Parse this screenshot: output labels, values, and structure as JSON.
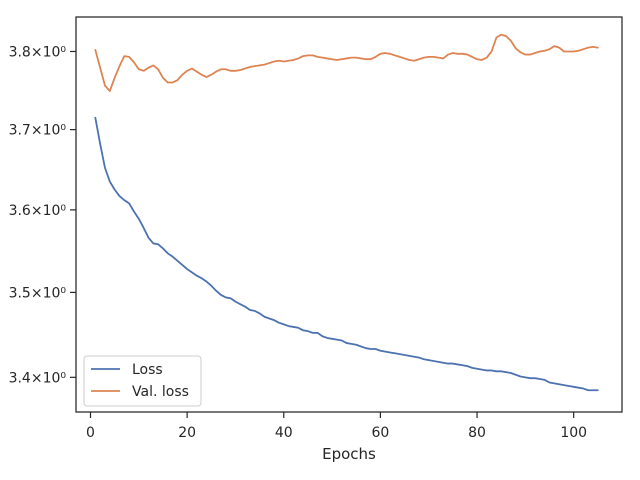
{
  "chart_data": {
    "type": "line",
    "title": "",
    "xlabel": "Epochs",
    "ylabel": "",
    "yscale": "log",
    "xlim": [
      -3,
      110
    ],
    "ylim": [
      3.36,
      3.845
    ],
    "xticks": [
      0,
      20,
      40,
      60,
      80,
      100
    ],
    "xtick_labels": [
      "0",
      "20",
      "40",
      "60",
      "80",
      "100"
    ],
    "yticks": [
      3.4,
      3.5,
      3.6,
      3.7,
      3.8
    ],
    "ytick_labels": [
      "3.4×10⁰",
      "3.5×10⁰",
      "3.6×10⁰",
      "3.7×10⁰",
      "3.8×10⁰"
    ],
    "grid": false,
    "legend_position": "lower-left",
    "series": [
      {
        "name": "Loss",
        "color": "#4c72b0",
        "x": [
          1,
          2,
          3,
          4,
          5,
          6,
          7,
          8,
          9,
          10,
          11,
          12,
          13,
          14,
          15,
          16,
          17,
          18,
          19,
          20,
          21,
          22,
          23,
          24,
          25,
          26,
          27,
          28,
          29,
          30,
          31,
          32,
          33,
          34,
          35,
          36,
          37,
          38,
          39,
          40,
          41,
          42,
          43,
          44,
          45,
          46,
          47,
          48,
          49,
          50,
          51,
          52,
          53,
          54,
          55,
          56,
          57,
          58,
          59,
          60,
          61,
          62,
          63,
          64,
          65,
          66,
          67,
          68,
          69,
          70,
          71,
          72,
          73,
          74,
          75,
          76,
          77,
          78,
          79,
          80,
          81,
          82,
          83,
          84,
          85,
          86,
          87,
          88,
          89,
          90,
          91,
          92,
          93,
          94,
          95,
          96,
          97,
          98,
          99,
          100,
          101,
          102,
          103,
          104,
          105
        ],
        "values": [
          3.715,
          3.682,
          3.652,
          3.635,
          3.625,
          3.617,
          3.612,
          3.608,
          3.598,
          3.589,
          3.578,
          3.566,
          3.559,
          3.558,
          3.553,
          3.547,
          3.543,
          3.538,
          3.533,
          3.528,
          3.524,
          3.52,
          3.517,
          3.513,
          3.508,
          3.502,
          3.497,
          3.494,
          3.493,
          3.489,
          3.486,
          3.483,
          3.479,
          3.478,
          3.475,
          3.471,
          3.469,
          3.467,
          3.464,
          3.462,
          3.46,
          3.459,
          3.458,
          3.455,
          3.454,
          3.452,
          3.452,
          3.448,
          3.446,
          3.445,
          3.444,
          3.443,
          3.44,
          3.439,
          3.438,
          3.436,
          3.434,
          3.433,
          3.433,
          3.431,
          3.43,
          3.429,
          3.428,
          3.427,
          3.426,
          3.425,
          3.424,
          3.423,
          3.421,
          3.42,
          3.419,
          3.418,
          3.417,
          3.416,
          3.416,
          3.415,
          3.414,
          3.413,
          3.411,
          3.41,
          3.409,
          3.408,
          3.408,
          3.407,
          3.407,
          3.406,
          3.405,
          3.403,
          3.401,
          3.4,
          3.399,
          3.399,
          3.398,
          3.397,
          3.394,
          3.393,
          3.392,
          3.391,
          3.39,
          3.389,
          3.388,
          3.387,
          3.385,
          3.385,
          3.385
        ]
      },
      {
        "name": "Val. loss",
        "color": "#dd8452",
        "x": [
          1,
          2,
          3,
          4,
          5,
          6,
          7,
          8,
          9,
          10,
          11,
          12,
          13,
          14,
          15,
          16,
          17,
          18,
          19,
          20,
          21,
          22,
          23,
          24,
          25,
          26,
          27,
          28,
          29,
          30,
          31,
          32,
          33,
          34,
          35,
          36,
          37,
          38,
          39,
          40,
          41,
          42,
          43,
          44,
          45,
          46,
          47,
          48,
          49,
          50,
          51,
          52,
          53,
          54,
          55,
          56,
          57,
          58,
          59,
          60,
          61,
          62,
          63,
          64,
          65,
          66,
          67,
          68,
          69,
          70,
          71,
          72,
          73,
          74,
          75,
          76,
          77,
          78,
          79,
          80,
          81,
          82,
          83,
          84,
          85,
          86,
          87,
          88,
          89,
          90,
          91,
          92,
          93,
          94,
          95,
          96,
          97,
          98,
          99,
          100,
          101,
          102,
          103,
          104,
          105
        ],
        "values": [
          3.802,
          3.779,
          3.756,
          3.749,
          3.766,
          3.781,
          3.794,
          3.793,
          3.786,
          3.777,
          3.775,
          3.779,
          3.782,
          3.777,
          3.766,
          3.76,
          3.76,
          3.763,
          3.77,
          3.775,
          3.778,
          3.774,
          3.77,
          3.767,
          3.77,
          3.774,
          3.777,
          3.777,
          3.775,
          3.775,
          3.776,
          3.778,
          3.78,
          3.781,
          3.782,
          3.783,
          3.785,
          3.787,
          3.788,
          3.787,
          3.788,
          3.789,
          3.791,
          3.794,
          3.795,
          3.795,
          3.793,
          3.792,
          3.791,
          3.79,
          3.789,
          3.79,
          3.791,
          3.792,
          3.792,
          3.791,
          3.79,
          3.79,
          3.793,
          3.797,
          3.798,
          3.797,
          3.795,
          3.793,
          3.791,
          3.789,
          3.788,
          3.79,
          3.792,
          3.793,
          3.793,
          3.792,
          3.791,
          3.796,
          3.798,
          3.797,
          3.797,
          3.796,
          3.793,
          3.79,
          3.789,
          3.792,
          3.8,
          3.818,
          3.822,
          3.82,
          3.814,
          3.804,
          3.799,
          3.796,
          3.796,
          3.798,
          3.8,
          3.801,
          3.803,
          3.807,
          3.805,
          3.8,
          3.8,
          3.8,
          3.801,
          3.803,
          3.805,
          3.806,
          3.805
        ]
      }
    ]
  }
}
